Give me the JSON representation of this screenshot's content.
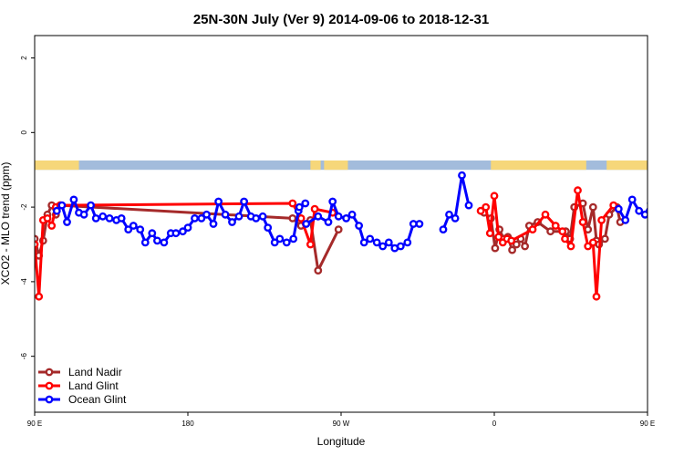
{
  "chart_data": {
    "type": "line",
    "title": "25N-30N July (Ver 9)   2014-09-06 to 2018-12-31",
    "xlabel": "Longitude",
    "ylabel": "XCO2 - MLO trend (ppm)",
    "xlim": [
      90,
      450
    ],
    "ylim": [
      -7.5,
      2.6
    ],
    "x_ticks": [
      {
        "value": 90,
        "label": "90 E"
      },
      {
        "value": 180,
        "label": "180"
      },
      {
        "value": 270,
        "label": "90 W"
      },
      {
        "value": 360,
        "label": "0"
      },
      {
        "value": 450,
        "label": "90 E"
      },
      {
        "value": 540,
        "label": "180"
      }
    ],
    "y_ticks": [
      {
        "value": 2,
        "label": "2"
      },
      {
        "value": 0,
        "label": "0"
      },
      {
        "value": -2,
        "label": "-2"
      },
      {
        "value": -4,
        "label": "-4"
      },
      {
        "value": -6,
        "label": "-6"
      }
    ],
    "land_mask": {
      "y_range": [
        -1.0,
        -0.75
      ],
      "ocean_color": "#a3bcdc",
      "land_color": "#f6d77a",
      "land_segments": [
        [
          90,
          116
        ],
        [
          252,
          258
        ],
        [
          260,
          274
        ],
        [
          358,
          414
        ],
        [
          426,
          457
        ]
      ]
    },
    "legend_position": "bottom-left",
    "series": [
      {
        "name": "Land Nadir",
        "color": "#a52a2a",
        "segments": [
          [
            [
              90,
              -2.85
            ],
            [
              92.5,
              -3.3
            ],
            [
              95,
              -2.9
            ],
            [
              97.5,
              -2.2
            ],
            [
              100,
              -1.95
            ],
            [
              102.5,
              -2.2
            ],
            [
              105,
              -1.95
            ],
            [
              241.5,
              -2.3
            ],
            [
              246.5,
              -2.5
            ],
            [
              252,
              -2.35
            ],
            [
              256.5,
              -3.7
            ],
            [
              268.5,
              -2.6
            ]
          ],
          [
            [
              354,
              -2.15
            ],
            [
              358,
              -2.3
            ],
            [
              360.5,
              -3.1
            ],
            [
              363,
              -2.6
            ],
            [
              365.5,
              -2.85
            ],
            [
              368,
              -2.8
            ],
            [
              370.5,
              -3.15
            ],
            [
              373,
              -3.0
            ],
            [
              375.5,
              -2.85
            ],
            [
              378,
              -3.05
            ],
            [
              380.5,
              -2.5
            ],
            [
              385.5,
              -2.4
            ],
            [
              393,
              -2.65
            ],
            [
              402,
              -2.65
            ],
            [
              404.5,
              -2.85
            ],
            [
              407,
              -2.0
            ],
            [
              412,
              -1.9
            ],
            [
              415,
              -2.6
            ],
            [
              418,
              -2.0
            ],
            [
              420,
              -2.9
            ],
            [
              421.5,
              -3.0
            ],
            [
              425,
              -2.85
            ],
            [
              427.5,
              -2.2
            ],
            [
              432,
              -2.0
            ],
            [
              434,
              -2.4
            ]
          ]
        ]
      },
      {
        "name": "Land Glint",
        "color": "#ff0000",
        "segments": [
          [
            [
              90,
              -3.0
            ],
            [
              92.5,
              -4.4
            ],
            [
              95,
              -2.35
            ],
            [
              97.5,
              -2.3
            ],
            [
              100,
              -2.5
            ],
            [
              102.5,
              -2.0
            ],
            [
              105,
              -1.95
            ],
            [
              241.5,
              -1.9
            ],
            [
              246.5,
              -2.3
            ],
            [
              252,
              -3.0
            ],
            [
              254.5,
              -2.05
            ],
            [
              265,
              -2.15
            ]
          ],
          [
            [
              352,
              -2.1
            ],
            [
              355,
              -2.0
            ],
            [
              357.5,
              -2.7
            ],
            [
              360,
              -1.7
            ],
            [
              362.5,
              -2.8
            ],
            [
              365,
              -2.95
            ],
            [
              367.5,
              -2.85
            ],
            [
              370,
              -2.9
            ],
            [
              382.5,
              -2.6
            ],
            [
              390,
              -2.2
            ],
            [
              396,
              -2.5
            ],
            [
              400,
              -2.65
            ],
            [
              401.5,
              -2.85
            ],
            [
              405,
              -3.05
            ],
            [
              409,
              -1.55
            ],
            [
              412,
              -2.4
            ],
            [
              415,
              -3.05
            ],
            [
              418,
              -2.95
            ],
            [
              420,
              -4.4
            ],
            [
              423,
              -2.35
            ],
            [
              430,
              -1.95
            ]
          ]
        ]
      },
      {
        "name": "Ocean Glint",
        "color": "#0000ff",
        "segments": [
          [
            [
              103,
              -2.1
            ],
            [
              106,
              -1.95
            ],
            [
              109,
              -2.4
            ],
            [
              113,
              -1.8
            ],
            [
              116,
              -2.15
            ],
            [
              119,
              -2.2
            ],
            [
              123,
              -1.95
            ],
            [
              126,
              -2.3
            ],
            [
              130,
              -2.25
            ],
            [
              134,
              -2.3
            ],
            [
              138,
              -2.35
            ],
            [
              141,
              -2.3
            ],
            [
              145,
              -2.6
            ],
            [
              148,
              -2.5
            ],
            [
              152,
              -2.6
            ],
            [
              155,
              -2.95
            ],
            [
              159,
              -2.7
            ],
            [
              162,
              -2.9
            ],
            [
              166,
              -2.95
            ],
            [
              170,
              -2.7
            ],
            [
              173,
              -2.7
            ],
            [
              177,
              -2.65
            ],
            [
              180,
              -2.55
            ],
            [
              184,
              -2.3
            ],
            [
              188,
              -2.3
            ],
            [
              191,
              -2.2
            ],
            [
              195,
              -2.45
            ],
            [
              198,
              -1.85
            ],
            [
              202,
              -2.2
            ],
            [
              206,
              -2.4
            ],
            [
              210,
              -2.25
            ],
            [
              213,
              -1.85
            ],
            [
              217,
              -2.25
            ],
            [
              220,
              -2.3
            ],
            [
              224,
              -2.25
            ],
            [
              227,
              -2.55
            ],
            [
              231,
              -2.95
            ],
            [
              234,
              -2.85
            ],
            [
              238,
              -2.95
            ],
            [
              242,
              -2.85
            ],
            [
              245,
              -2.1
            ]
          ],
          [
            [
              245.5,
              -2.0
            ],
            [
              249,
              -1.9
            ]
          ],
          [
            [
              249.5,
              -2.45
            ],
            [
              256.5,
              -2.25
            ],
            [
              262.5,
              -2.4
            ],
            [
              265,
              -1.85
            ],
            [
              268.5,
              -2.25
            ],
            [
              273,
              -2.3
            ],
            [
              276.5,
              -2.2
            ],
            [
              280.5,
              -2.5
            ],
            [
              283.5,
              -2.95
            ],
            [
              287,
              -2.85
            ],
            [
              291,
              -2.95
            ],
            [
              294.5,
              -3.05
            ],
            [
              298,
              -2.95
            ],
            [
              301.5,
              -3.1
            ],
            [
              305,
              -3.05
            ],
            [
              309,
              -2.95
            ],
            [
              312.5,
              -2.45
            ],
            [
              316,
              -2.45
            ]
          ],
          [
            [
              330,
              -2.6
            ],
            [
              333.5,
              -2.2
            ],
            [
              337,
              -2.3
            ],
            [
              341,
              -1.15
            ],
            [
              345,
              -1.95
            ]
          ],
          [
            [
              433,
              -2.05
            ],
            [
              437,
              -2.35
            ],
            [
              441,
              -1.8
            ],
            [
              445,
              -2.1
            ],
            [
              448.5,
              -2.2
            ],
            [
              452,
              -1.9
            ],
            [
              456,
              -2.3
            ],
            [
              459,
              -2.25
            ],
            [
              463,
              -2.3
            ],
            [
              467,
              -2.35
            ],
            [
              470,
              -2.3
            ],
            [
              474,
              -2.6
            ]
          ]
        ]
      }
    ]
  }
}
